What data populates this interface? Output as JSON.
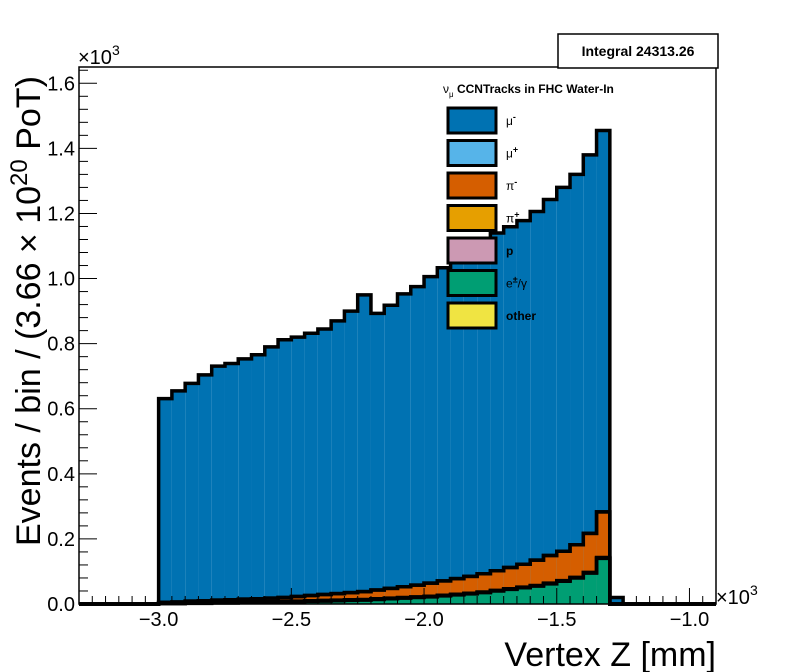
{
  "chart_data": {
    "type": "bar",
    "stacked": true,
    "title": "",
    "xlabel": "Vertex Z [mm]",
    "ylabel_parts": {
      "pre": "Events / bin / (3.66 ",
      "times": "×",
      "base": " 10",
      "exp": "20",
      "post": " PoT)"
    },
    "x_exponent_label": "×10",
    "x_exponent": "3",
    "y_exponent_label": "×10",
    "y_exponent": "3",
    "xlim": [
      -3.3,
      -0.9
    ],
    "ylim": [
      0,
      1.65
    ],
    "x_ticks": [
      -3.0,
      -2.5,
      -2.0,
      -1.5,
      -1.0
    ],
    "x_tick_labels": [
      "−3.0",
      "−2.5",
      "−2.0",
      "−1.5",
      "−1.0"
    ],
    "y_ticks": [
      0,
      0.2,
      0.4,
      0.6,
      0.8,
      1.0,
      1.2,
      1.4,
      1.6
    ],
    "y_tick_labels": [
      "0.0",
      "0.2",
      "0.4",
      "0.6",
      "0.8",
      "1.0",
      "1.2",
      "1.4",
      "1.6"
    ],
    "bin_edges": [
      -3.3,
      -3.25,
      -3.2,
      -3.15,
      -3.1,
      -3.05,
      -3.0,
      -2.95,
      -2.9,
      -2.85,
      -2.8,
      -2.75,
      -2.7,
      -2.65,
      -2.6,
      -2.55,
      -2.5,
      -2.45,
      -2.4,
      -2.35,
      -2.3,
      -2.25,
      -2.2,
      -2.15,
      -2.1,
      -2.05,
      -2.0,
      -1.95,
      -1.9,
      -1.85,
      -1.8,
      -1.75,
      -1.7,
      -1.65,
      -1.6,
      -1.55,
      -1.5,
      -1.45,
      -1.4,
      -1.35,
      -1.3,
      -1.25,
      -1.2,
      -1.15,
      -1.1,
      -1.05,
      -1.0,
      -0.95,
      -0.9
    ],
    "series": [
      {
        "name": "other",
        "color": "#f0e442",
        "values": [
          0,
          0,
          0,
          0,
          0,
          0,
          0,
          0,
          0,
          0,
          0,
          0,
          0,
          0,
          0,
          0,
          0,
          0,
          0,
          0,
          0,
          0,
          0,
          0,
          0,
          0,
          0,
          0,
          0,
          0,
          0,
          0,
          0,
          0,
          0,
          0,
          0,
          0,
          0,
          0,
          0,
          0,
          0,
          0,
          0,
          0,
          0,
          0
        ]
      },
      {
        "name": "e±/γ",
        "color": "#009e73",
        "values": [
          0,
          0,
          0,
          0,
          0,
          0,
          0.001,
          0.001,
          0.002,
          0.002,
          0.003,
          0.003,
          0.004,
          0.004,
          0.005,
          0.006,
          0.007,
          0.008,
          0.009,
          0.01,
          0.011,
          0.012,
          0.014,
          0.016,
          0.018,
          0.02,
          0.022,
          0.025,
          0.028,
          0.031,
          0.035,
          0.04,
          0.045,
          0.05,
          0.055,
          0.062,
          0.07,
          0.08,
          0.095,
          0.14,
          0,
          0,
          0,
          0,
          0,
          0,
          0,
          0
        ]
      },
      {
        "name": "p",
        "color": "#cc99b3",
        "values": [
          0,
          0,
          0,
          0,
          0,
          0,
          0.0005,
          0.0005,
          0.001,
          0.001,
          0.001,
          0.001,
          0.001,
          0.001,
          0.001,
          0.001,
          0.001,
          0.001,
          0.001,
          0.001,
          0.001,
          0.001,
          0.001,
          0.001,
          0.001,
          0.001,
          0.001,
          0.001,
          0.001,
          0.001,
          0.001,
          0.001,
          0.001,
          0.001,
          0.001,
          0.001,
          0.001,
          0.001,
          0.001,
          0.001,
          0,
          0,
          0,
          0,
          0,
          0,
          0,
          0
        ]
      },
      {
        "name": "π+",
        "color": "#e69f00",
        "values": [
          0,
          0,
          0,
          0,
          0,
          0,
          0.0005,
          0.0005,
          0.001,
          0.001,
          0.001,
          0.001,
          0.001,
          0.001,
          0.001,
          0.001,
          0.001,
          0.001,
          0.001,
          0.001,
          0.001,
          0.001,
          0.001,
          0.001,
          0.001,
          0.001,
          0.001,
          0.001,
          0.001,
          0.001,
          0.001,
          0.001,
          0.001,
          0.001,
          0.001,
          0.001,
          0.001,
          0.001,
          0.001,
          0.002,
          0,
          0,
          0,
          0,
          0,
          0,
          0,
          0
        ]
      },
      {
        "name": "π-",
        "color": "#d55e00",
        "values": [
          0,
          0,
          0,
          0,
          0,
          0,
          0.003,
          0.004,
          0.005,
          0.006,
          0.007,
          0.008,
          0.009,
          0.01,
          0.011,
          0.012,
          0.014,
          0.016,
          0.018,
          0.02,
          0.022,
          0.024,
          0.027,
          0.03,
          0.033,
          0.036,
          0.04,
          0.044,
          0.048,
          0.052,
          0.056,
          0.06,
          0.065,
          0.07,
          0.078,
          0.085,
          0.09,
          0.1,
          0.12,
          0.14,
          0,
          0,
          0,
          0,
          0,
          0,
          0,
          0
        ]
      },
      {
        "name": "μ+",
        "color": "#56b4e9",
        "values": [
          0,
          0,
          0,
          0,
          0,
          0,
          0,
          0,
          0,
          0,
          0,
          0,
          0,
          0,
          0,
          0,
          0,
          0,
          0,
          0,
          0,
          0,
          0,
          0,
          0,
          0,
          0,
          0,
          0,
          0,
          0,
          0,
          0,
          0,
          0,
          0,
          0,
          0,
          0,
          0,
          0,
          0,
          0,
          0,
          0,
          0,
          0,
          0
        ]
      },
      {
        "name": "μ-",
        "color": "#0072b2",
        "values": [
          0,
          0,
          0,
          0,
          0,
          0,
          0.626,
          0.649,
          0.669,
          0.694,
          0.719,
          0.726,
          0.738,
          0.75,
          0.772,
          0.792,
          0.797,
          0.806,
          0.816,
          0.838,
          0.865,
          0.912,
          0.85,
          0.87,
          0.9,
          0.917,
          0.942,
          0.962,
          0.981,
          1.029,
          1.007,
          1.038,
          1.047,
          1.056,
          1.071,
          1.094,
          1.118,
          1.138,
          1.163,
          1.172,
          0.02,
          0,
          0,
          0,
          0,
          0,
          0,
          0
        ]
      }
    ],
    "legend": {
      "title_sym": "ν",
      "title_sub": "μ",
      "title_text": " CCNTracks in FHC Water-In",
      "entries": [
        {
          "label": "μ",
          "sup": "-",
          "color": "#0072b2"
        },
        {
          "label": "μ",
          "sup": "+",
          "color": "#56b4e9"
        },
        {
          "label": "π",
          "sup": "-",
          "color": "#d55e00"
        },
        {
          "label": "π",
          "sup": "+",
          "color": "#e69f00"
        },
        {
          "label": "p",
          "sup": "",
          "color": "#cc99b3"
        },
        {
          "label": "e",
          "sup": "±",
          "suffix": "/γ",
          "color": "#009e73"
        },
        {
          "label": "other",
          "sup": "",
          "color": "#f0e442"
        }
      ],
      "position": "top-center"
    },
    "stats_box": "Integral 24313.26",
    "grid": false
  }
}
